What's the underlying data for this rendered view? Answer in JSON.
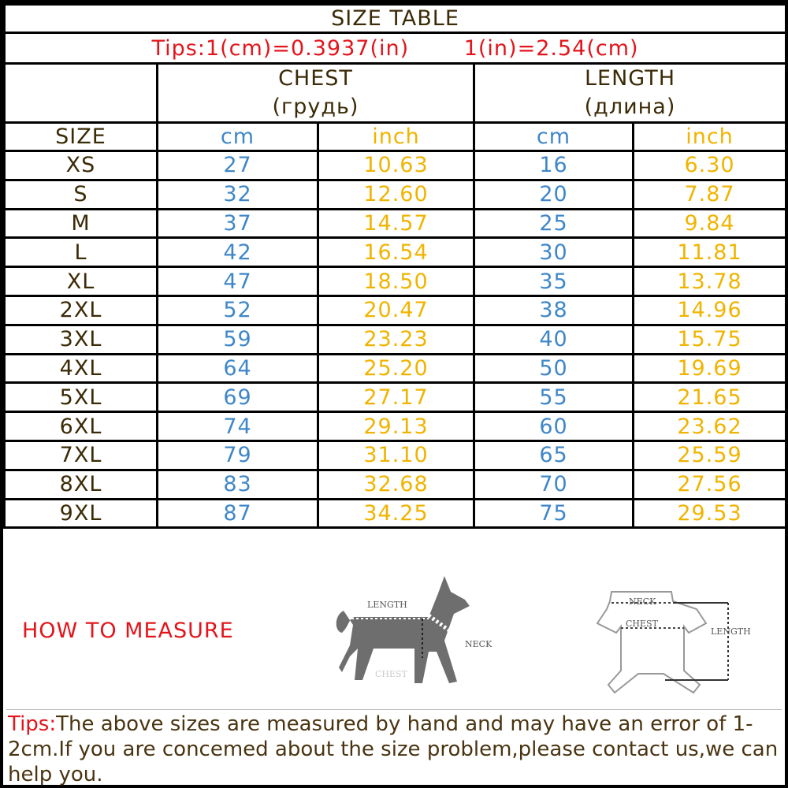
{
  "title": "SIZE TABLE",
  "tips_line": [
    "Tips:1(cm)=0.3937(in)",
    "1(in)=2.54(cm)"
  ],
  "groups": [
    {
      "name": "CHEST",
      "sub": "(грудь)"
    },
    {
      "name": "LENGTH",
      "sub": "(длина)"
    }
  ],
  "columns": [
    "SIZE",
    "cm",
    "inch",
    "cm",
    "inch"
  ],
  "rows": [
    [
      "XS",
      "27",
      "10.63",
      "16",
      "6.30"
    ],
    [
      "S",
      "32",
      "12.60",
      "20",
      "7.87"
    ],
    [
      "M",
      "37",
      "14.57",
      "25",
      "9.84"
    ],
    [
      "L",
      "42",
      "16.54",
      "30",
      "11.81"
    ],
    [
      "XL",
      "47",
      "18.50",
      "35",
      "13.78"
    ],
    [
      "2XL",
      "52",
      "20.47",
      "38",
      "14.96"
    ],
    [
      "3XL",
      "59",
      "23.23",
      "40",
      "15.75"
    ],
    [
      "4XL",
      "64",
      "25.20",
      "50",
      "19.69"
    ],
    [
      "5XL",
      "69",
      "27.17",
      "55",
      "21.65"
    ],
    [
      "6XL",
      "74",
      "29.13",
      "60",
      "23.62"
    ],
    [
      "7XL",
      "79",
      "31.10",
      "65",
      "25.59"
    ],
    [
      "8XL",
      "83",
      "32.68",
      "70",
      "27.56"
    ],
    [
      "9XL",
      "87",
      "34.25",
      "75",
      "29.53"
    ]
  ],
  "how_to_measure": "HOW TO MEASURE",
  "dog_labels": {
    "length": "LENGTH",
    "neck": "NECK",
    "chest": "CHEST"
  },
  "suit_labels": {
    "neck": "NECK",
    "chest": "CHEST",
    "length": "LENGTH"
  },
  "note": {
    "label": "Tips:",
    "text": "The above sizes are measured by hand and may have an error of 1-2cm.If you are concemed about the size problem,please contact us,we can help you."
  },
  "colors": {
    "red": "#e3141b",
    "cm": "#3f87c8",
    "inch": "#f0b400",
    "text": "#3b2b06"
  }
}
